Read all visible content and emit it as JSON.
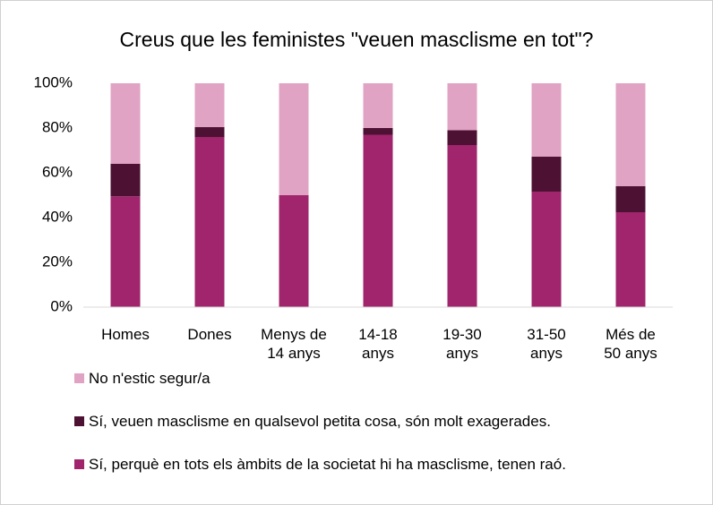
{
  "chart_data": {
    "type": "stacked_bar",
    "title": "Creus que les feministes \"veuen masclisme en tot\"?",
    "categories": [
      "Homes",
      "Dones",
      "Menys de 14 anys",
      "14-18 anys",
      "19-30 anys",
      "31-50 anys",
      "Més de 50 anys"
    ],
    "series": [
      {
        "name": "Sí, perquè en tots els àmbits de la societat hi ha masclisme, tenen raó.",
        "color": "#a0256c",
        "values": [
          49.5,
          76,
          50,
          77,
          72.4,
          51.6,
          42.4
        ]
      },
      {
        "name": "Sí, veuen masclisme en qualsevol petita cosa, són molt exagerades.",
        "color": "#4d1233",
        "values": [
          14.5,
          4.4,
          0,
          3,
          6.6,
          15.6,
          11.6
        ]
      },
      {
        "name": "No n'estic segur/a",
        "color": "#e0a3c3",
        "values": [
          36,
          19.6,
          50,
          20,
          21,
          32.8,
          46
        ]
      }
    ],
    "ylim": [
      0,
      100
    ],
    "yticks": [
      {
        "value": 0,
        "label": "0%"
      },
      {
        "value": 20,
        "label": "20%"
      },
      {
        "value": 40,
        "label": "40%"
      },
      {
        "value": 60,
        "label": "60%"
      },
      {
        "value": 80,
        "label": "80%"
      },
      {
        "value": 100,
        "label": "100%"
      }
    ]
  }
}
